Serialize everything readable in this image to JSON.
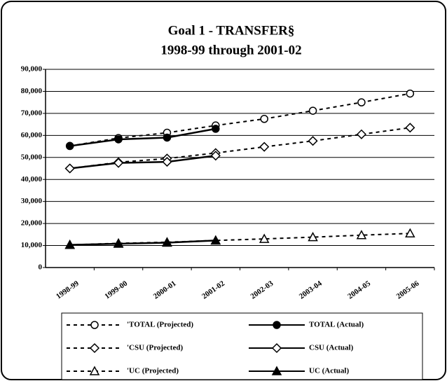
{
  "chart_data": {
    "type": "line",
    "title": [
      "Goal 1 - TRANSFER§",
      "1998-99 through 2001-02"
    ],
    "categories": [
      "1998-99",
      "1999-00",
      "2000-01",
      "2001-02",
      "2002-03",
      "2003-04",
      "2004-05",
      "2005-06"
    ],
    "series": [
      {
        "name": "'TOTAL (Projected)",
        "color": "#000000",
        "dashed": true,
        "marker": "circle",
        "filled": false,
        "values": [
          55200,
          58800,
          61200,
          64500,
          67500,
          71200,
          75000,
          79000
        ]
      },
      {
        "name": "TOTAL (Actual)",
        "color": "#000000",
        "dashed": false,
        "marker": "circle",
        "filled": true,
        "values": [
          55200,
          58200,
          59000,
          63000,
          null,
          null,
          null,
          null
        ]
      },
      {
        "name": "'CSU (Projected)",
        "color": "#000000",
        "dashed": true,
        "marker": "diamond",
        "filled": false,
        "values": [
          45000,
          47800,
          49500,
          52000,
          54800,
          57500,
          60500,
          63500
        ]
      },
      {
        "name": "CSU (Actual)",
        "color": "#000000",
        "dashed": false,
        "marker": "diamond",
        "filled": false,
        "values": [
          45000,
          47500,
          48000,
          50800,
          null,
          null,
          null,
          null
        ]
      },
      {
        "name": "'UC (Projected)",
        "color": "#000000",
        "dashed": true,
        "marker": "triangle",
        "filled": false,
        "values": [
          10300,
          11000,
          11500,
          12300,
          13000,
          13800,
          14700,
          15500
        ]
      },
      {
        "name": "UC (Actual)",
        "color": "#000000",
        "dashed": false,
        "marker": "triangle",
        "filled": true,
        "values": [
          10300,
          10800,
          11300,
          12300,
          null,
          null,
          null,
          null
        ]
      }
    ],
    "ylim": [
      0,
      90000
    ],
    "yticks": [
      0,
      {
        "value": 10000,
        "label": "10,000"
      },
      {
        "value": 20000,
        "label": "20,000"
      },
      {
        "value": 30000,
        "label": "30,000"
      },
      {
        "value": 40000,
        "label": "40,000"
      },
      {
        "value": 50000,
        "label": "50,000"
      },
      {
        "value": 60000,
        "label": "60,000"
      },
      {
        "value": 70000,
        "label": "70,000"
      },
      {
        "value": 80000,
        "label": "80,000"
      },
      {
        "value": 90000,
        "label": "90,000"
      }
    ],
    "grid": true
  }
}
